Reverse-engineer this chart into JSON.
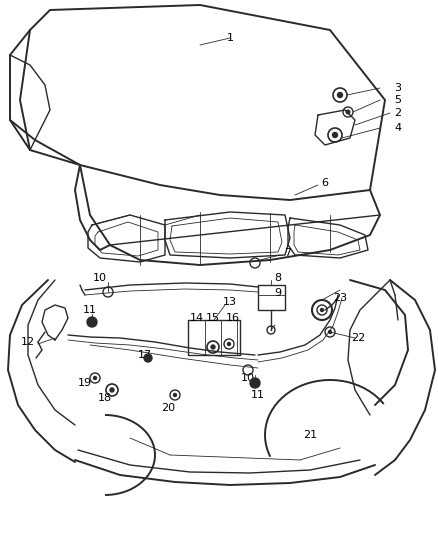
{
  "bg_color": "#ffffff",
  "line_color": "#2a2a2a",
  "lw_main": 1.4,
  "lw_med": 1.0,
  "lw_thin": 0.6,
  "label_fontsize": 8.0,
  "label_color": "#000000"
}
